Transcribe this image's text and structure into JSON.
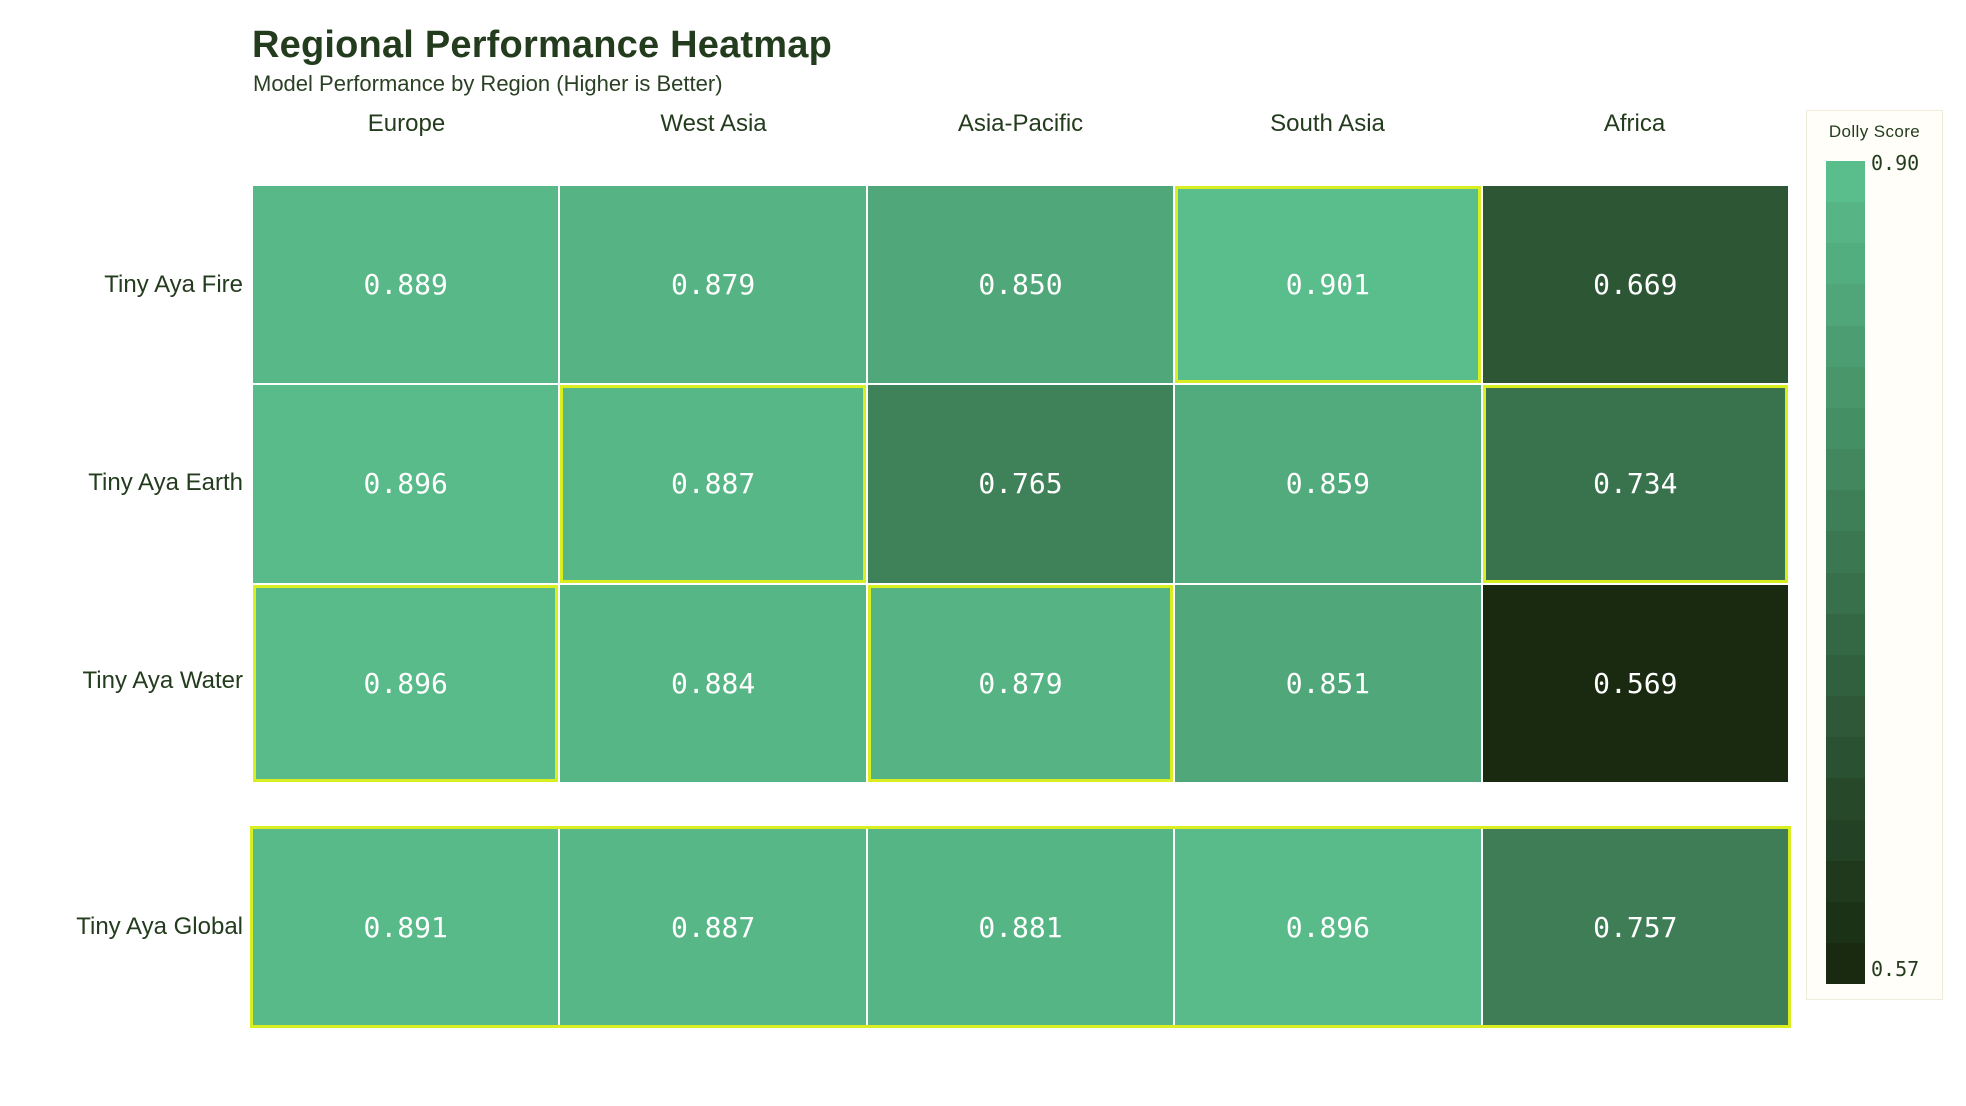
{
  "header": {
    "title": "Regional Performance Heatmap",
    "subtitle": "Model Performance by Region (Higher is Better)"
  },
  "legend": {
    "title": "Dolly Score",
    "max_label": "0.90",
    "min_label": "0.57"
  },
  "colors": {
    "scale_high": "#5abd8c",
    "scale_low": "#192a10",
    "highlight_border": "#d9ee20",
    "text_dark": "#243c1e",
    "cell_text": "#ffffff",
    "legend_bg": "#fffef8",
    "legend_border": "#efecdc"
  },
  "chart_data": {
    "type": "heatmap",
    "title": "Regional Performance Heatmap",
    "subtitle": "Model Performance by Region (Higher is Better)",
    "columns": [
      "Europe",
      "West Asia",
      "Asia-Pacific",
      "South Asia",
      "Africa"
    ],
    "rows": [
      "Tiny Aya Fire",
      "Tiny Aya Earth",
      "Tiny Aya Water",
      "Tiny Aya Global"
    ],
    "values": [
      [
        0.889,
        0.879,
        0.85,
        0.901,
        0.669
      ],
      [
        0.896,
        0.887,
        0.765,
        0.859,
        0.734
      ],
      [
        0.896,
        0.884,
        0.879,
        0.851,
        0.569
      ],
      [
        0.891,
        0.887,
        0.881,
        0.896,
        0.757
      ]
    ],
    "value_decimals": 3,
    "scale": {
      "label": "Dolly Score",
      "min": 0.57,
      "max": 0.9
    },
    "colorbar_steps": 20,
    "legend_position": "right",
    "highlighted_cells": [
      [
        0,
        3
      ],
      [
        1,
        1
      ],
      [
        1,
        4
      ],
      [
        2,
        0
      ],
      [
        2,
        2
      ]
    ],
    "highlighted_row_index": 3
  }
}
